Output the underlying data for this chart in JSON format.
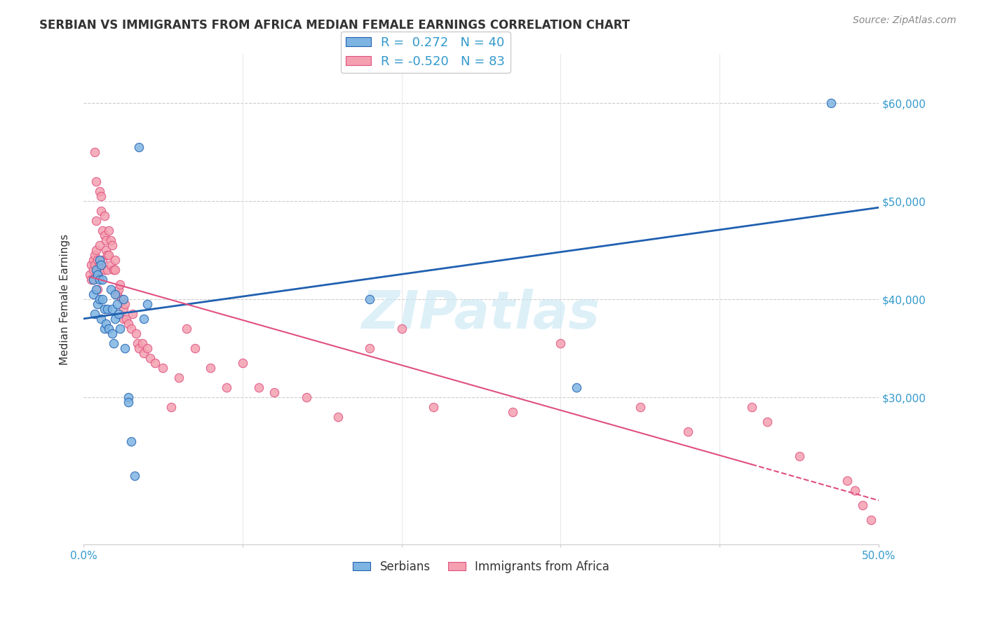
{
  "title": "SERBIAN VS IMMIGRANTS FROM AFRICA MEDIAN FEMALE EARNINGS CORRELATION CHART",
  "source": "Source: ZipAtlas.com",
  "ylabel": "Median Female Earnings",
  "ytick_labels": [
    "$30,000",
    "$40,000",
    "$50,000",
    "$60,000"
  ],
  "ytick_values": [
    30000,
    40000,
    50000,
    60000
  ],
  "r_serbian": 0.272,
  "n_serbian": 40,
  "r_africa": -0.52,
  "n_africa": 83,
  "watermark": "ZIPatlas",
  "color_serbian": "#7eb4e2",
  "color_africa": "#f4a0b0",
  "line_color_serbian": "#2060b0",
  "line_color_africa": "#e05080",
  "background_color": "#ffffff",
  "serbian_x": [
    0.006,
    0.006,
    0.007,
    0.008,
    0.008,
    0.009,
    0.009,
    0.01,
    0.01,
    0.01,
    0.011,
    0.011,
    0.012,
    0.012,
    0.013,
    0.013,
    0.014,
    0.015,
    0.016,
    0.017,
    0.018,
    0.018,
    0.019,
    0.02,
    0.02,
    0.021,
    0.022,
    0.023,
    0.025,
    0.026,
    0.028,
    0.028,
    0.03,
    0.032,
    0.035,
    0.038,
    0.04,
    0.18,
    0.31,
    0.47
  ],
  "serbian_y": [
    42000,
    40500,
    38500,
    43000,
    41000,
    42500,
    39500,
    44000,
    42000,
    40000,
    43500,
    38000,
    42000,
    40000,
    37000,
    39000,
    37500,
    39000,
    37000,
    41000,
    36500,
    39000,
    35500,
    38000,
    40500,
    39500,
    38500,
    37000,
    40000,
    35000,
    30000,
    29500,
    25500,
    22000,
    55500,
    38000,
    39500,
    40000,
    31000,
    60000
  ],
  "africa_x": [
    0.004,
    0.005,
    0.005,
    0.006,
    0.006,
    0.006,
    0.007,
    0.007,
    0.007,
    0.008,
    0.008,
    0.008,
    0.009,
    0.009,
    0.009,
    0.01,
    0.01,
    0.01,
    0.011,
    0.011,
    0.011,
    0.012,
    0.012,
    0.013,
    0.013,
    0.013,
    0.014,
    0.014,
    0.015,
    0.015,
    0.016,
    0.016,
    0.017,
    0.017,
    0.018,
    0.019,
    0.02,
    0.02,
    0.021,
    0.022,
    0.023,
    0.024,
    0.025,
    0.025,
    0.026,
    0.027,
    0.028,
    0.03,
    0.031,
    0.033,
    0.034,
    0.035,
    0.037,
    0.038,
    0.04,
    0.042,
    0.045,
    0.05,
    0.055,
    0.06,
    0.065,
    0.07,
    0.08,
    0.09,
    0.1,
    0.11,
    0.12,
    0.14,
    0.16,
    0.18,
    0.2,
    0.22,
    0.27,
    0.3,
    0.35,
    0.38,
    0.42,
    0.43,
    0.45,
    0.48,
    0.485,
    0.49,
    0.495
  ],
  "africa_y": [
    42500,
    43500,
    42000,
    44000,
    43000,
    42000,
    55000,
    44500,
    43500,
    52000,
    48000,
    45000,
    44000,
    42500,
    41000,
    51000,
    45500,
    43500,
    50500,
    49000,
    43000,
    47000,
    44000,
    48500,
    46500,
    43000,
    46000,
    45000,
    44500,
    43000,
    47000,
    44500,
    46000,
    43500,
    45500,
    43000,
    44000,
    43000,
    40500,
    41000,
    41500,
    40000,
    39000,
    38000,
    39500,
    38000,
    37500,
    37000,
    38500,
    36500,
    35500,
    35000,
    35500,
    34500,
    35000,
    34000,
    33500,
    33000,
    29000,
    32000,
    37000,
    35000,
    33000,
    31000,
    33500,
    31000,
    30500,
    30000,
    28000,
    35000,
    37000,
    29000,
    28500,
    35500,
    29000,
    26500,
    29000,
    27500,
    24000,
    21500,
    20500,
    19000,
    17500
  ]
}
